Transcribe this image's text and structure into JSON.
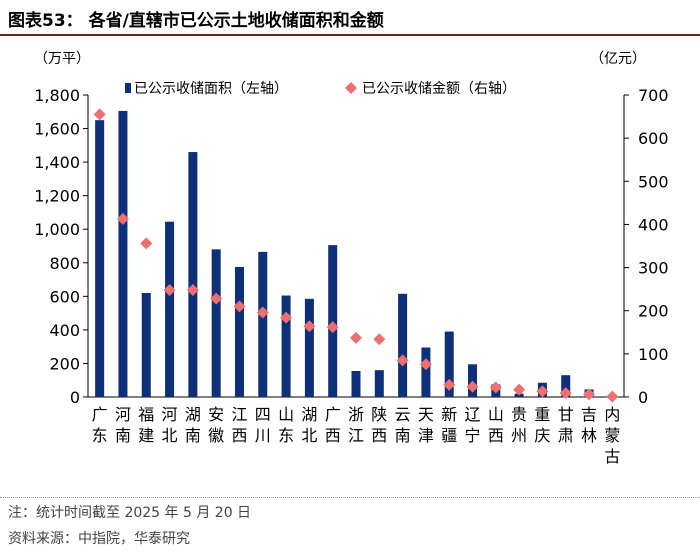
{
  "title": "图表53：   各省/直辖市已公示土地收储面积和金额",
  "note": "注：统计时间截至 2025 年 5 月 20 日",
  "source": "资料来源：中指院，华泰研究",
  "chart_data": {
    "type": "bar",
    "left_unit": "（万平）",
    "right_unit": "（亿元）",
    "categories": [
      "广东",
      "河南",
      "福建",
      "河北",
      "湖南",
      "安徽",
      "江西",
      "四川",
      "山东",
      "湖北",
      "广西",
      "浙江",
      "陕西",
      "云南",
      "天津",
      "新疆",
      "辽宁",
      "山西",
      "贵州",
      "重庆",
      "甘肃",
      "吉林",
      "内蒙古"
    ],
    "category_lines": [
      [
        "广",
        "东"
      ],
      [
        "河",
        "南"
      ],
      [
        "福",
        "建"
      ],
      [
        "河",
        "北"
      ],
      [
        "湖",
        "南"
      ],
      [
        "安",
        "徽"
      ],
      [
        "江",
        "西"
      ],
      [
        "四",
        "川"
      ],
      [
        "山",
        "东"
      ],
      [
        "湖",
        "北"
      ],
      [
        "广",
        "西"
      ],
      [
        "浙",
        "江"
      ],
      [
        "陕",
        "西"
      ],
      [
        "云",
        "南"
      ],
      [
        "天",
        "津"
      ],
      [
        "新",
        "疆"
      ],
      [
        "辽",
        "宁"
      ],
      [
        "山",
        "西"
      ],
      [
        "贵",
        "州"
      ],
      [
        "重",
        "庆"
      ],
      [
        "甘",
        "肃"
      ],
      [
        "吉",
        "林"
      ],
      [
        "内",
        "蒙",
        "古"
      ]
    ],
    "series": [
      {
        "name": "已公示收储面积（左轴）",
        "type": "bar",
        "axis": "left",
        "color": "#0e2f7a",
        "values": [
          1650,
          1705,
          620,
          1045,
          1460,
          880,
          775,
          865,
          605,
          585,
          905,
          155,
          160,
          615,
          295,
          390,
          195,
          75,
          20,
          85,
          130,
          45,
          0
        ]
      },
      {
        "name": "已公示收储金额（右轴）",
        "type": "scatter",
        "axis": "right",
        "color": "#ee6f6f",
        "values": [
          655,
          413,
          356,
          248,
          248,
          228,
          210,
          196,
          184,
          164,
          162,
          137,
          134,
          85,
          76,
          28,
          24,
          22,
          17,
          13,
          9,
          6,
          1
        ]
      }
    ],
    "y_left": {
      "min": 0,
      "max": 1800,
      "ticks": [
        0,
        200,
        400,
        600,
        800,
        1000,
        1200,
        1400,
        1600,
        1800
      ],
      "tick_labels": [
        "0",
        "200",
        "400",
        "600",
        "800",
        "1,000",
        "1,200",
        "1,400",
        "1,600",
        "1,800"
      ]
    },
    "y_right": {
      "min": 0,
      "max": 700,
      "ticks": [
        0,
        100,
        200,
        300,
        400,
        500,
        600,
        700
      ],
      "tick_labels": [
        "0",
        "100",
        "200",
        "300",
        "400",
        "500",
        "600",
        "700"
      ]
    },
    "grid": false,
    "legend": "top"
  }
}
